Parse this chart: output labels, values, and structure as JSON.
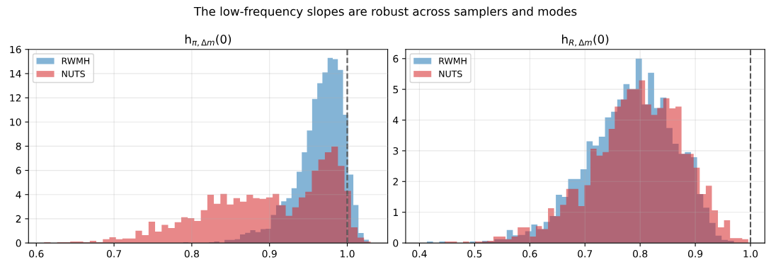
{
  "chart_data": [
    {
      "type": "histogram",
      "title": "h$_{π,Δm}$(0)",
      "annotations": [
        "The low-frequency slopes are robust across samplers and modes"
      ],
      "bins": [
        0.6962,
        0.7028,
        0.7095,
        0.7161,
        0.7227,
        0.7294,
        0.736,
        0.7426,
        0.7492,
        0.7559,
        0.7625,
        0.7691,
        0.7758,
        0.7824,
        0.789,
        0.7957,
        0.8023,
        0.8089,
        0.8155,
        0.8222,
        0.8288,
        0.8354,
        0.8421,
        0.8487,
        0.8553,
        0.862,
        0.8686,
        0.8752,
        0.8818,
        0.8885,
        0.8951,
        0.9017,
        0.9084,
        0.915,
        0.9216,
        0.9283,
        0.9349,
        0.9415,
        0.9481,
        0.9548,
        0.9614,
        0.968,
        0.9747,
        0.9813,
        0.9879,
        0.9946,
        1.0012,
        1.0078,
        1.0144,
        1.0211,
        1.0277
      ],
      "xlim": [
        0.59,
        1.052
      ],
      "ylim": [
        0,
        16
      ],
      "xticks": [
        0.6,
        0.7,
        0.8,
        0.9,
        {
          "value": 1,
          "label": "1.0"
        }
      ],
      "yticks": [
        0,
        2,
        4,
        6,
        8,
        10,
        12,
        14,
        16
      ],
      "grid": true,
      "legend": "top left",
      "ref_lines": [
        {
          "axis": "x",
          "value": 1.0,
          "color": "#444444",
          "line_style": "dashed"
        }
      ],
      "series": [
        {
          "name": "RWMH",
          "color": "#1f77b4",
          "values": [
            0,
            0,
            0,
            0,
            0,
            0,
            0,
            0,
            0,
            0,
            0,
            0,
            0,
            0,
            0.06,
            0,
            0,
            0,
            0,
            0.06,
            0.12,
            0,
            0.25,
            0.25,
            0.31,
            0.71,
            0.84,
            1.06,
            0.9,
            1.14,
            1.18,
            2.31,
            3.12,
            3.45,
            3.71,
            4.53,
            5.88,
            7.49,
            9.29,
            11.9,
            13.2,
            14.1,
            15.3,
            15.2,
            14.3,
            10.6,
            5.65,
            3.14,
            0.82,
            0.27
          ]
        },
        {
          "name": "NUTS",
          "color": "#d62728",
          "bins": [
            0.61,
            0.6184,
            0.6268,
            0.6352,
            0.6436,
            0.652,
            0.6604,
            0.6688,
            0.6772,
            0.6856,
            0.694,
            0.7024,
            0.7108,
            0.7192,
            0.7276,
            0.736,
            0.7444,
            0.7528,
            0.7612,
            0.7696,
            0.778,
            0.7864,
            0.7948,
            0.8032,
            0.8116,
            0.82,
            0.8284,
            0.8368,
            0.8452,
            0.8536,
            0.862,
            0.8704,
            0.8788,
            0.8872,
            0.8956,
            0.904,
            0.9124,
            0.9208,
            0.9292,
            0.9376,
            0.946,
            0.9544,
            0.9628,
            0.9712,
            0.9796,
            0.988,
            0.9964,
            1.0048,
            1.0132,
            1.0216,
            1.03
          ],
          "values": [
            0.06,
            0,
            0.06,
            0.06,
            0.12,
            0.12,
            0.06,
            0.18,
            0.06,
            0.31,
            0.47,
            0.31,
            0.37,
            0.37,
            1.02,
            0.65,
            1.76,
            0.94,
            1.49,
            1.24,
            1.71,
            2.12,
            2.06,
            1.82,
            2.71,
            3.98,
            3.24,
            4.06,
            3.18,
            3.71,
            3.41,
            3.98,
            3.71,
            3.65,
            3.76,
            4.06,
            3.12,
            2.24,
            2.94,
            3.76,
            4.24,
            5.98,
            6.9,
            7.49,
            7.96,
            6.37,
            4.31,
            1.29,
            0.45,
            0.12
          ]
        }
      ]
    },
    {
      "type": "histogram",
      "title": "h$_{R,Δm}$(0)",
      "bins": [
        0.4135,
        0.4246,
        0.4358,
        0.4469,
        0.458,
        0.4692,
        0.4803,
        0.4914,
        0.5025,
        0.5137,
        0.5248,
        0.5359,
        0.5471,
        0.5582,
        0.5693,
        0.5805,
        0.5916,
        0.6027,
        0.6138,
        0.625,
        0.6361,
        0.6472,
        0.6584,
        0.6695,
        0.6806,
        0.6918,
        0.7029,
        0.714,
        0.7251,
        0.7363,
        0.7474,
        0.7585,
        0.7697,
        0.7808,
        0.7919,
        0.8031,
        0.8142,
        0.8253,
        0.8364,
        0.8476,
        0.8587,
        0.8698,
        0.881,
        0.8921,
        0.9032,
        0.9144,
        0.9255,
        0.9366,
        0.9477,
        0.9589,
        0.97
      ],
      "xlim": [
        0.375,
        1.026
      ],
      "ylim": [
        0,
        6.3
      ],
      "xticks": [
        0.4,
        0.5,
        0.6,
        0.7,
        0.8,
        0.9,
        {
          "value": 1,
          "label": "1.0"
        }
      ],
      "yticks": [
        0,
        1,
        2,
        3,
        4,
        5,
        6
      ],
      "grid": true,
      "legend": "top left",
      "ref_lines": [
        {
          "axis": "x",
          "value": 1.0,
          "color": "#444444",
          "line_style": "dashed"
        }
      ],
      "series": [
        {
          "name": "RWMH",
          "color": "#1f77b4",
          "values": [
            0.05,
            0,
            0.05,
            0,
            0,
            0,
            0,
            0.05,
            0,
            0.07,
            0.05,
            0.12,
            0.12,
            0.42,
            0.25,
            0.26,
            0.38,
            0.6,
            0.45,
            0.69,
            0.88,
            1.57,
            1.5,
            2.08,
            2.08,
            2.4,
            3.31,
            3.17,
            3.46,
            4.09,
            4.27,
            4.67,
            5.17,
            5.01,
            6.0,
            4.51,
            5.54,
            4.39,
            4.73,
            3.74,
            3.23,
            2.9,
            2.96,
            2.79,
            1.59,
            1.15,
            0.65,
            0.24,
            0.1,
            0.07
          ]
        },
        {
          "name": "NUTS",
          "color": "#d62728",
          "bins": [
            0.446,
            0.457,
            0.468,
            0.479,
            0.49,
            0.501,
            0.512,
            0.523,
            0.534,
            0.545,
            0.556,
            0.567,
            0.578,
            0.589,
            0.6,
            0.611,
            0.622,
            0.633,
            0.644,
            0.655,
            0.666,
            0.677,
            0.688,
            0.699,
            0.71,
            0.721,
            0.732,
            0.743,
            0.754,
            0.765,
            0.776,
            0.787,
            0.798,
            0.809,
            0.82,
            0.831,
            0.842,
            0.853,
            0.864,
            0.875,
            0.886,
            0.897,
            0.908,
            0.919,
            0.93,
            0.941,
            0.952,
            0.963,
            0.974,
            0.985,
            0.996
          ],
          "values": [
            0.05,
            0.05,
            0,
            0.05,
            0,
            0.05,
            0.05,
            0.07,
            0.21,
            0.21,
            0.12,
            0.21,
            0.51,
            0.51,
            0.21,
            0.55,
            0.45,
            1.13,
            0.87,
            1.24,
            1.76,
            1.76,
            1.2,
            1.88,
            3.07,
            2.84,
            2.96,
            3.71,
            4.44,
            4.67,
            5.01,
            5.01,
            5.29,
            4.51,
            4.17,
            4.39,
            4.71,
            4.38,
            4.44,
            2.9,
            2.9,
            2.45,
            1.59,
            1.86,
            1.06,
            0.51,
            0.74,
            0.16,
            0.16,
            0.12
          ]
        }
      ]
    }
  ]
}
